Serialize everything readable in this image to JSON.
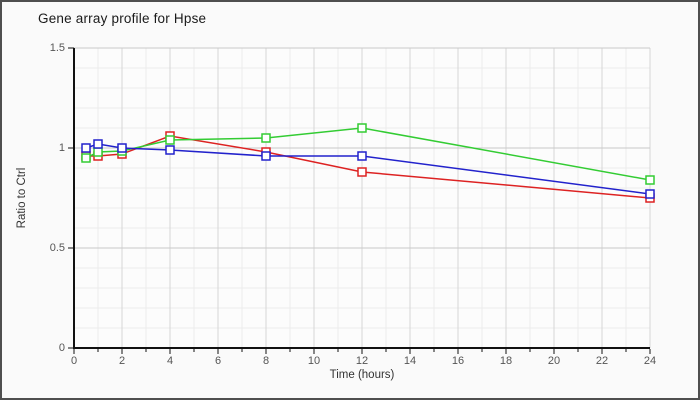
{
  "title": "Gene array profile for Hpse",
  "chart_data": {
    "type": "line",
    "title": "Gene array profile for Hpse",
    "xlabel": "Time (hours)",
    "ylabel": "Ratio to Ctrl",
    "xlim": [
      0,
      24
    ],
    "ylim": [
      0,
      1.5
    ],
    "x_tick_values": [
      0,
      2,
      4,
      6,
      8,
      10,
      12,
      14,
      16,
      18,
      20,
      22,
      24
    ],
    "x_tick_labels": [
      "0",
      "2",
      "4",
      "6",
      "8",
      "10",
      "12",
      "14",
      "16",
      "18",
      "20",
      "22",
      "24"
    ],
    "x_minor_step": 1,
    "y_tick_values": [
      0,
      0.5,
      1,
      1.5
    ],
    "y_tick_labels": [
      "0",
      "0.5",
      "1",
      "1.5"
    ],
    "y_minor_step": 0.1,
    "grid": true,
    "legend": "none",
    "marker": "open-square",
    "x": [
      0.5,
      1,
      2,
      4,
      8,
      12,
      24
    ],
    "series": [
      {
        "name": "red",
        "color": "#dd2222",
        "values": [
          0.96,
          0.96,
          0.97,
          1.06,
          0.98,
          0.88,
          0.75
        ]
      },
      {
        "name": "green",
        "color": "#33cc33",
        "values": [
          0.95,
          0.98,
          0.985,
          1.04,
          1.05,
          1.1,
          0.84
        ]
      },
      {
        "name": "blue",
        "color": "#2222cc",
        "values": [
          1.0,
          1.02,
          1.0,
          0.99,
          0.96,
          0.96,
          0.77
        ]
      }
    ]
  },
  "colors": {
    "background": "#fafafa",
    "frame_border": "#4f4f4f",
    "plot_background": "#fcfcfc",
    "grid_minor": "#ececec",
    "grid_major_v": "#d6d6d6",
    "grid_major_h": "#c9c9c9",
    "axis": "#111111",
    "tick_label": "#555555",
    "axis_label": "#333333",
    "title_color": "#1a1a1a"
  }
}
